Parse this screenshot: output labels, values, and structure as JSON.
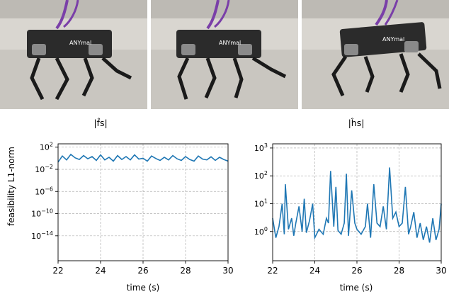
{
  "figure": {
    "photos": [
      {
        "name": "robot-frame-1",
        "logo_text": "ANYmal"
      },
      {
        "name": "robot-frame-2",
        "logo_text": "ANYmal"
      },
      {
        "name": "robot-frame-3",
        "logo_text": "ANYmal"
      }
    ],
    "colors": {
      "line": "#1f77b4",
      "floor": "#c9c6c0",
      "wall": "#d9d6d0",
      "robot_body": "#2b2b2b",
      "cable": "#7a3fa8"
    }
  },
  "chart_data": [
    {
      "type": "line",
      "title": "|f̂s|",
      "xlabel": "time (s)",
      "ylabel": "feasibility L1-norm",
      "xlim": [
        22,
        30
      ],
      "ylim_log10": [
        -18.5,
        2.6
      ],
      "yscale": "log",
      "xticks": [
        "22",
        "24",
        "26",
        "28",
        "30"
      ],
      "yticks": [
        {
          "exp": 2,
          "label": "10",
          "sup": "2"
        },
        {
          "exp": -2,
          "label": "10",
          "sup": "−2"
        },
        {
          "exp": -6,
          "label": "10",
          "sup": "−6"
        },
        {
          "exp": -10,
          "label": "10",
          "sup": "−10"
        },
        {
          "exp": -14,
          "label": "10",
          "sup": "−14"
        }
      ],
      "grid": true,
      "series": [
        {
          "x": [
            22.0,
            22.2,
            22.4,
            22.6,
            22.8,
            23.0,
            23.2,
            23.4,
            23.6,
            23.8,
            24.0,
            24.2,
            24.4,
            24.6,
            24.8,
            25.0,
            25.2,
            25.4,
            25.6,
            25.8,
            26.0,
            26.2,
            26.4,
            26.6,
            26.8,
            27.0,
            27.2,
            27.4,
            27.6,
            27.8,
            28.0,
            28.2,
            28.4,
            28.6,
            28.8,
            29.0,
            29.2,
            29.4,
            29.6,
            29.8,
            30.0
          ],
          "y": [
            0.2,
            2.5,
            0.5,
            5,
            1.2,
            0.6,
            3,
            0.8,
            2,
            0.4,
            4,
            0.5,
            1.5,
            0.3,
            3,
            0.6,
            2,
            0.5,
            4,
            0.7,
            1,
            0.3,
            2.5,
            0.9,
            0.4,
            1.5,
            0.5,
            3,
            0.8,
            0.4,
            2,
            0.6,
            0.3,
            2.5,
            0.7,
            0.5,
            1.8,
            0.4,
            1.5,
            0.6,
            0.3
          ]
        }
      ]
    },
    {
      "type": "line",
      "title": "|ĥs|",
      "xlabel": "time (s)",
      "ylabel": "",
      "xlim": [
        22,
        30
      ],
      "ylim_log10": [
        -1.05,
        3.15
      ],
      "yscale": "log",
      "xticks": [
        "22",
        "24",
        "26",
        "28",
        "30"
      ],
      "yticks": [
        {
          "exp": 3,
          "label": "10",
          "sup": "3"
        },
        {
          "exp": 2,
          "label": "10",
          "sup": "2"
        },
        {
          "exp": 1,
          "label": "10",
          "sup": "1"
        },
        {
          "exp": 0,
          "label": "10",
          "sup": "0"
        }
      ],
      "grid": true,
      "series": [
        {
          "x": [
            22.0,
            22.15,
            22.3,
            22.45,
            22.55,
            22.6,
            22.75,
            22.9,
            23.0,
            23.1,
            23.25,
            23.4,
            23.5,
            23.6,
            23.75,
            23.9,
            24.0,
            24.2,
            24.4,
            24.55,
            24.65,
            24.75,
            24.9,
            25.0,
            25.1,
            25.25,
            25.4,
            25.5,
            25.6,
            25.75,
            25.9,
            26.0,
            26.2,
            26.4,
            26.5,
            26.65,
            26.8,
            26.95,
            27.1,
            27.25,
            27.4,
            27.55,
            27.7,
            27.85,
            28.0,
            28.15,
            28.3,
            28.45,
            28.55,
            28.7,
            28.85,
            29.0,
            29.15,
            29.3,
            29.45,
            29.6,
            29.75,
            29.9,
            30.0
          ],
          "y": [
            3,
            0.6,
            1.5,
            10,
            0.8,
            50,
            1.2,
            3,
            0.7,
            2,
            8,
            1,
            15,
            0.9,
            2.5,
            10,
            0.6,
            1.2,
            0.8,
            3,
            2,
            150,
            1.5,
            40,
            1.1,
            0.8,
            2,
            120,
            0.7,
            30,
            2,
            1.2,
            0.8,
            1.5,
            10,
            0.6,
            50,
            2,
            1.5,
            8,
            1.2,
            200,
            3,
            5,
            1.5,
            2,
            40,
            0.8,
            1.5,
            5,
            0.6,
            2,
            0.5,
            1.5,
            0.4,
            3,
            0.5,
            1.2,
            10
          ]
        }
      ]
    }
  ]
}
